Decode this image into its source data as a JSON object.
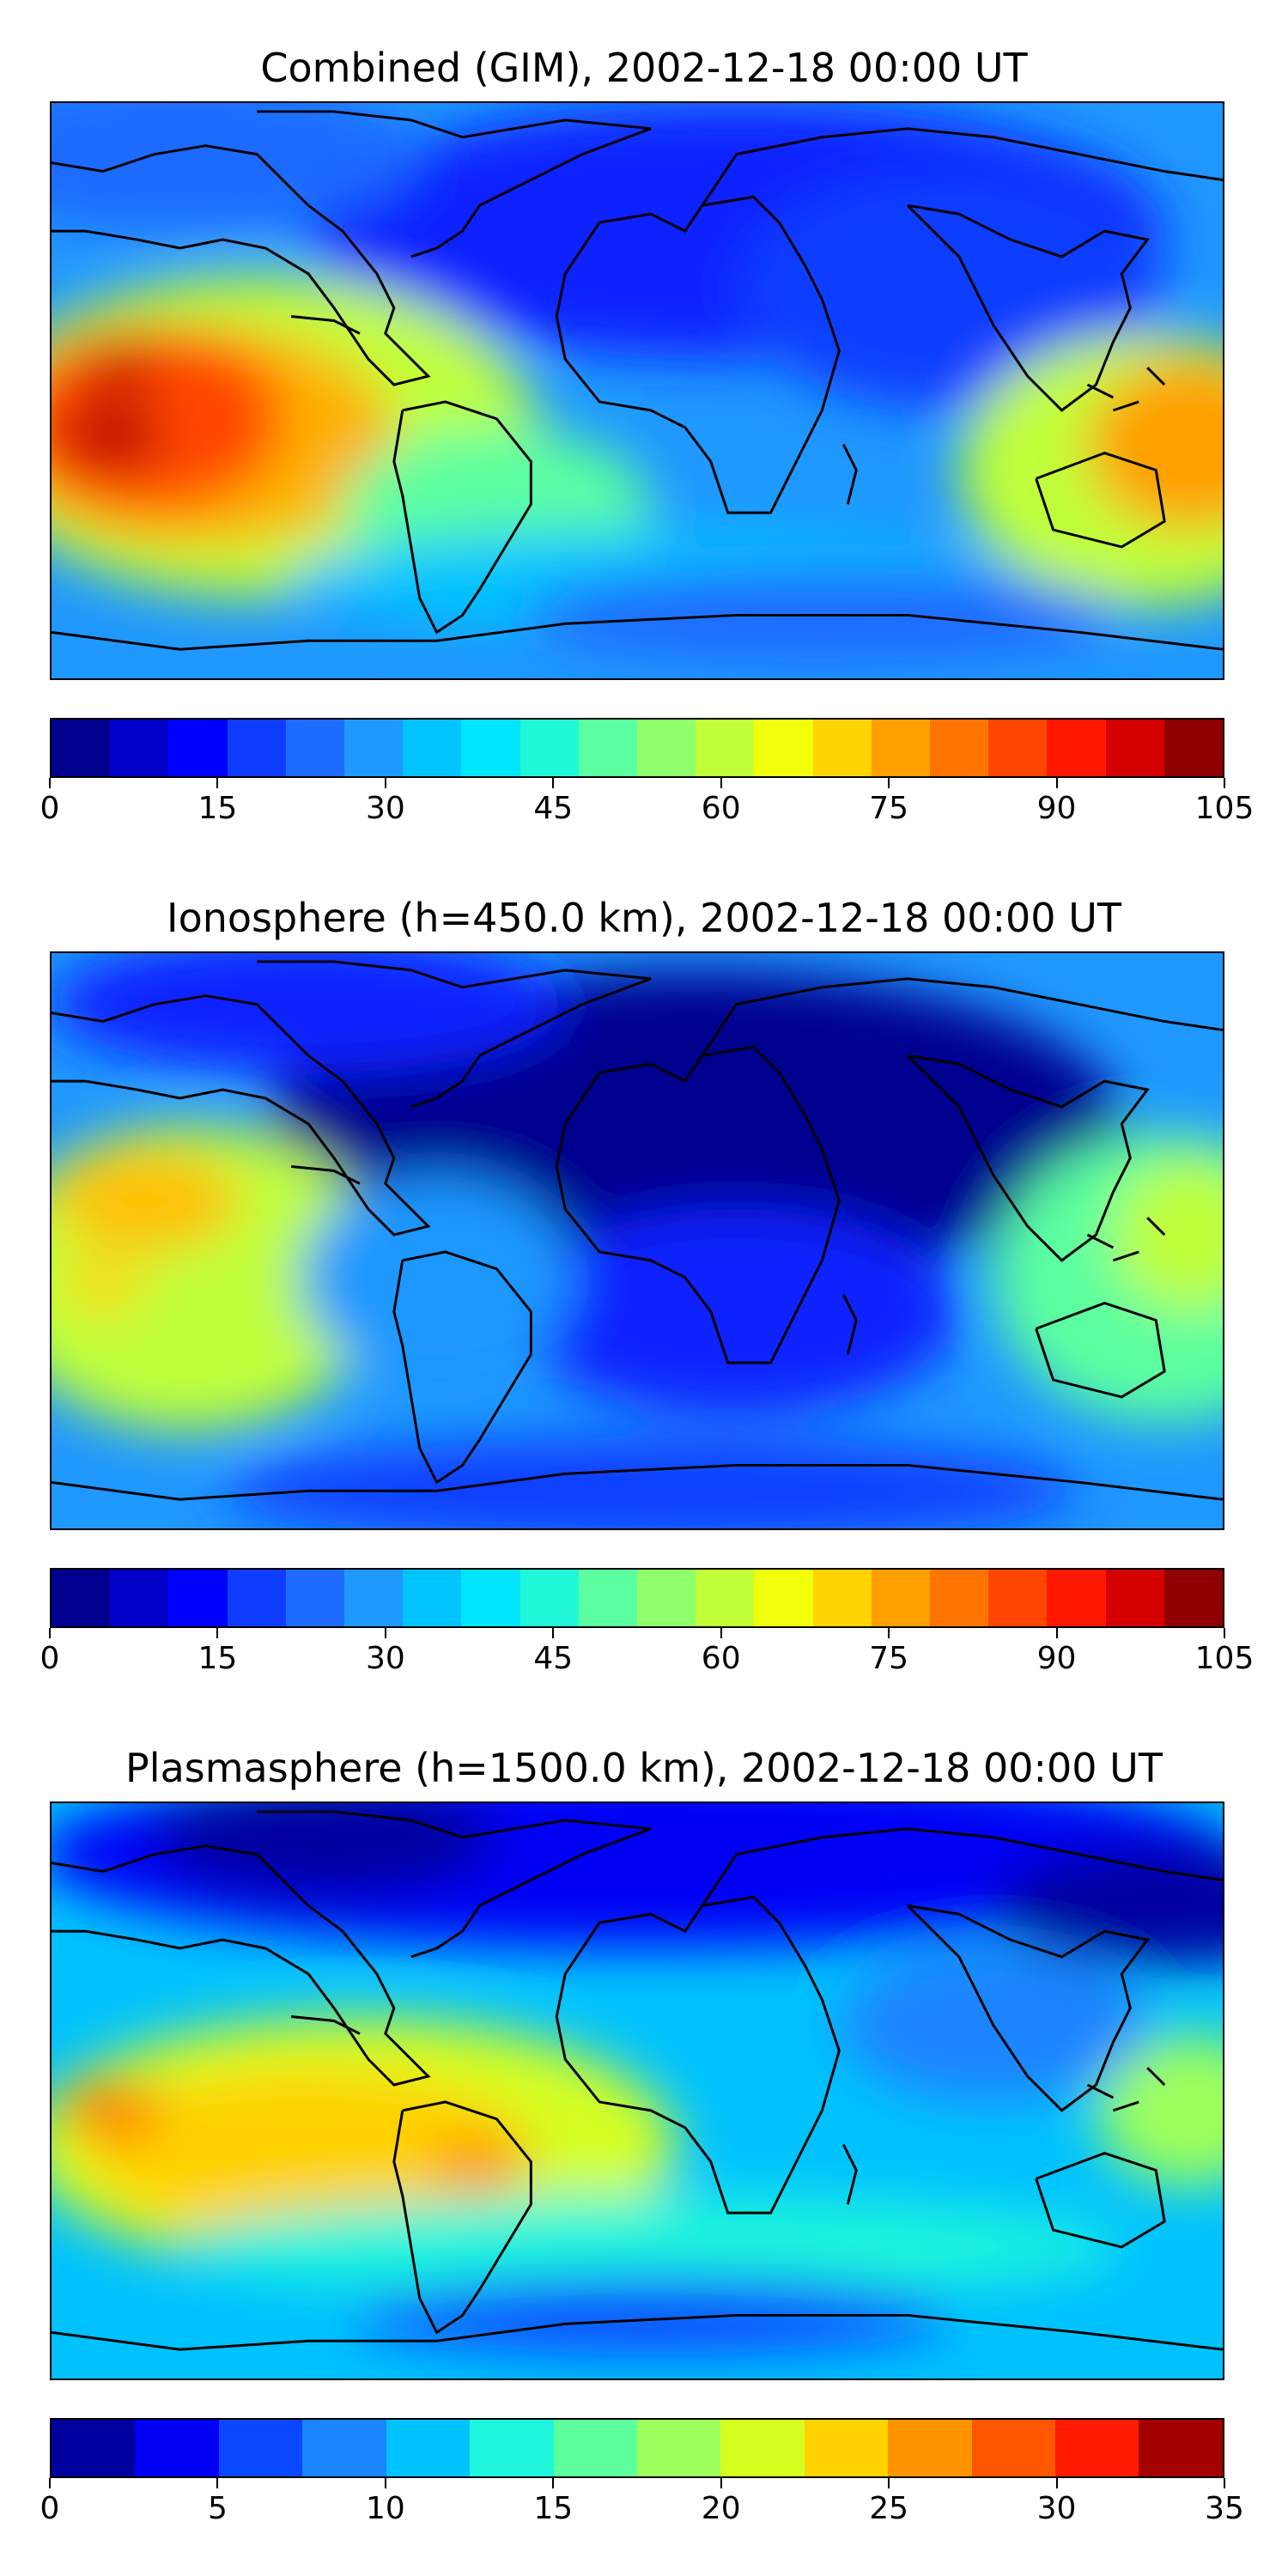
{
  "panels": [
    {
      "title": "Combined (GIM), 2002-12-18 00:00 UT",
      "colorbar": {
        "ticks": [
          "0",
          "15",
          "30",
          "45",
          "60",
          "75",
          "90",
          "105"
        ],
        "colors": [
          "#00008f",
          "#0000c8",
          "#0000ff",
          "#0f3dff",
          "#1e6bff",
          "#1f98ff",
          "#00c4ff",
          "#00e6ff",
          "#1ff7d8",
          "#5cffa0",
          "#8fff6c",
          "#c0ff3a",
          "#f2ff0c",
          "#ffd400",
          "#ff9f00",
          "#ff7300",
          "#ff4600",
          "#ff1700",
          "#d40000",
          "#8f0000"
        ]
      }
    },
    {
      "title": "Ionosphere  (h=450.0 km), 2002-12-18 00:00 UT",
      "colorbar": {
        "ticks": [
          "0",
          "15",
          "30",
          "45",
          "60",
          "75",
          "90",
          "105"
        ],
        "colors": [
          "#00008f",
          "#0000c8",
          "#0000ff",
          "#0f3dff",
          "#1e6bff",
          "#1f98ff",
          "#00c4ff",
          "#00e6ff",
          "#1ff7d8",
          "#5cffa0",
          "#8fff6c",
          "#c0ff3a",
          "#f2ff0c",
          "#ffd400",
          "#ff9f00",
          "#ff7300",
          "#ff4600",
          "#ff1700",
          "#d40000",
          "#8f0000"
        ]
      }
    },
    {
      "title": "Plasmasphere (h=1500.0 km), 2002-12-18 00:00 UT",
      "colorbar": {
        "ticks": [
          "0",
          "5",
          "10",
          "15",
          "20",
          "25",
          "30",
          "35"
        ],
        "colors": [
          "#00009f",
          "#0000f5",
          "#0a48ff",
          "#1b84ff",
          "#00c2ff",
          "#1ff5dc",
          "#5cff9c",
          "#9cff5c",
          "#d6ff22",
          "#ffd200",
          "#ff9300",
          "#ff5600",
          "#ff1a00",
          "#a30000"
        ]
      }
    }
  ]
}
